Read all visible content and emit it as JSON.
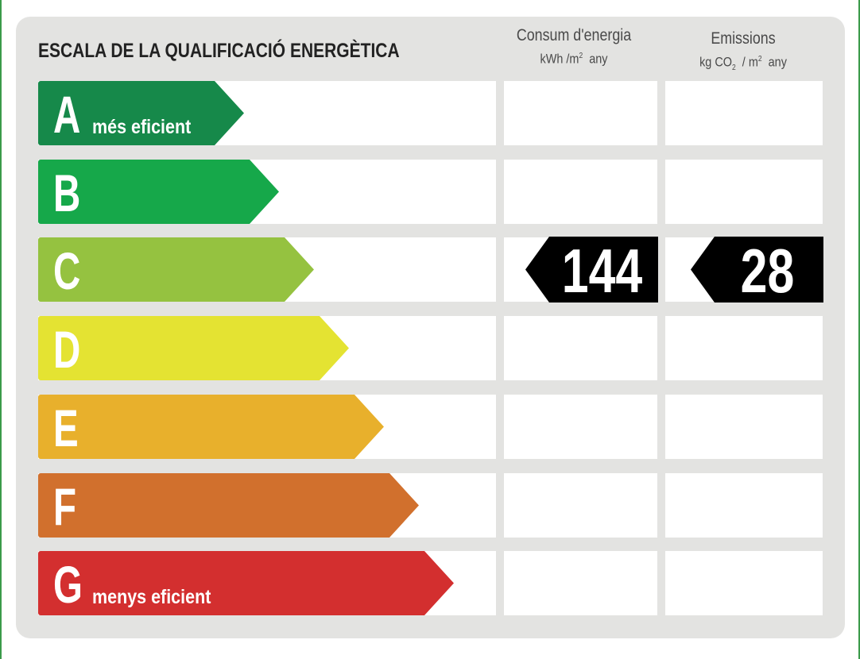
{
  "header": {
    "title": "ESCALA DE LA QUALIFICACIÓ ENERGÈTICA",
    "energy_col": {
      "line1": "Consum d'energia",
      "unit_prefix": "kWh /m",
      "unit_sup": "2",
      "unit_suffix": "any"
    },
    "emissions_col": {
      "line1": "Emissions",
      "unit_prefix": "kg CO",
      "unit_sub": "2",
      "unit_mid": "/ m",
      "unit_sup": "2",
      "unit_suffix": "any"
    }
  },
  "chart_data": {
    "type": "table",
    "rating": "C",
    "classes": [
      {
        "letter": "A",
        "caption": "més eficient",
        "color": "#16894a"
      },
      {
        "letter": "B",
        "caption": "",
        "color": "#16a84a"
      },
      {
        "letter": "C",
        "caption": "",
        "color": "#95c240"
      },
      {
        "letter": "D",
        "caption": "",
        "color": "#e4e332"
      },
      {
        "letter": "E",
        "caption": "",
        "color": "#e8b02c"
      },
      {
        "letter": "F",
        "caption": "",
        "color": "#d1702d"
      },
      {
        "letter": "G",
        "caption": "menys eficient",
        "color": "#d32f2f"
      }
    ],
    "energy_consumption": 144,
    "emissions": 28
  }
}
